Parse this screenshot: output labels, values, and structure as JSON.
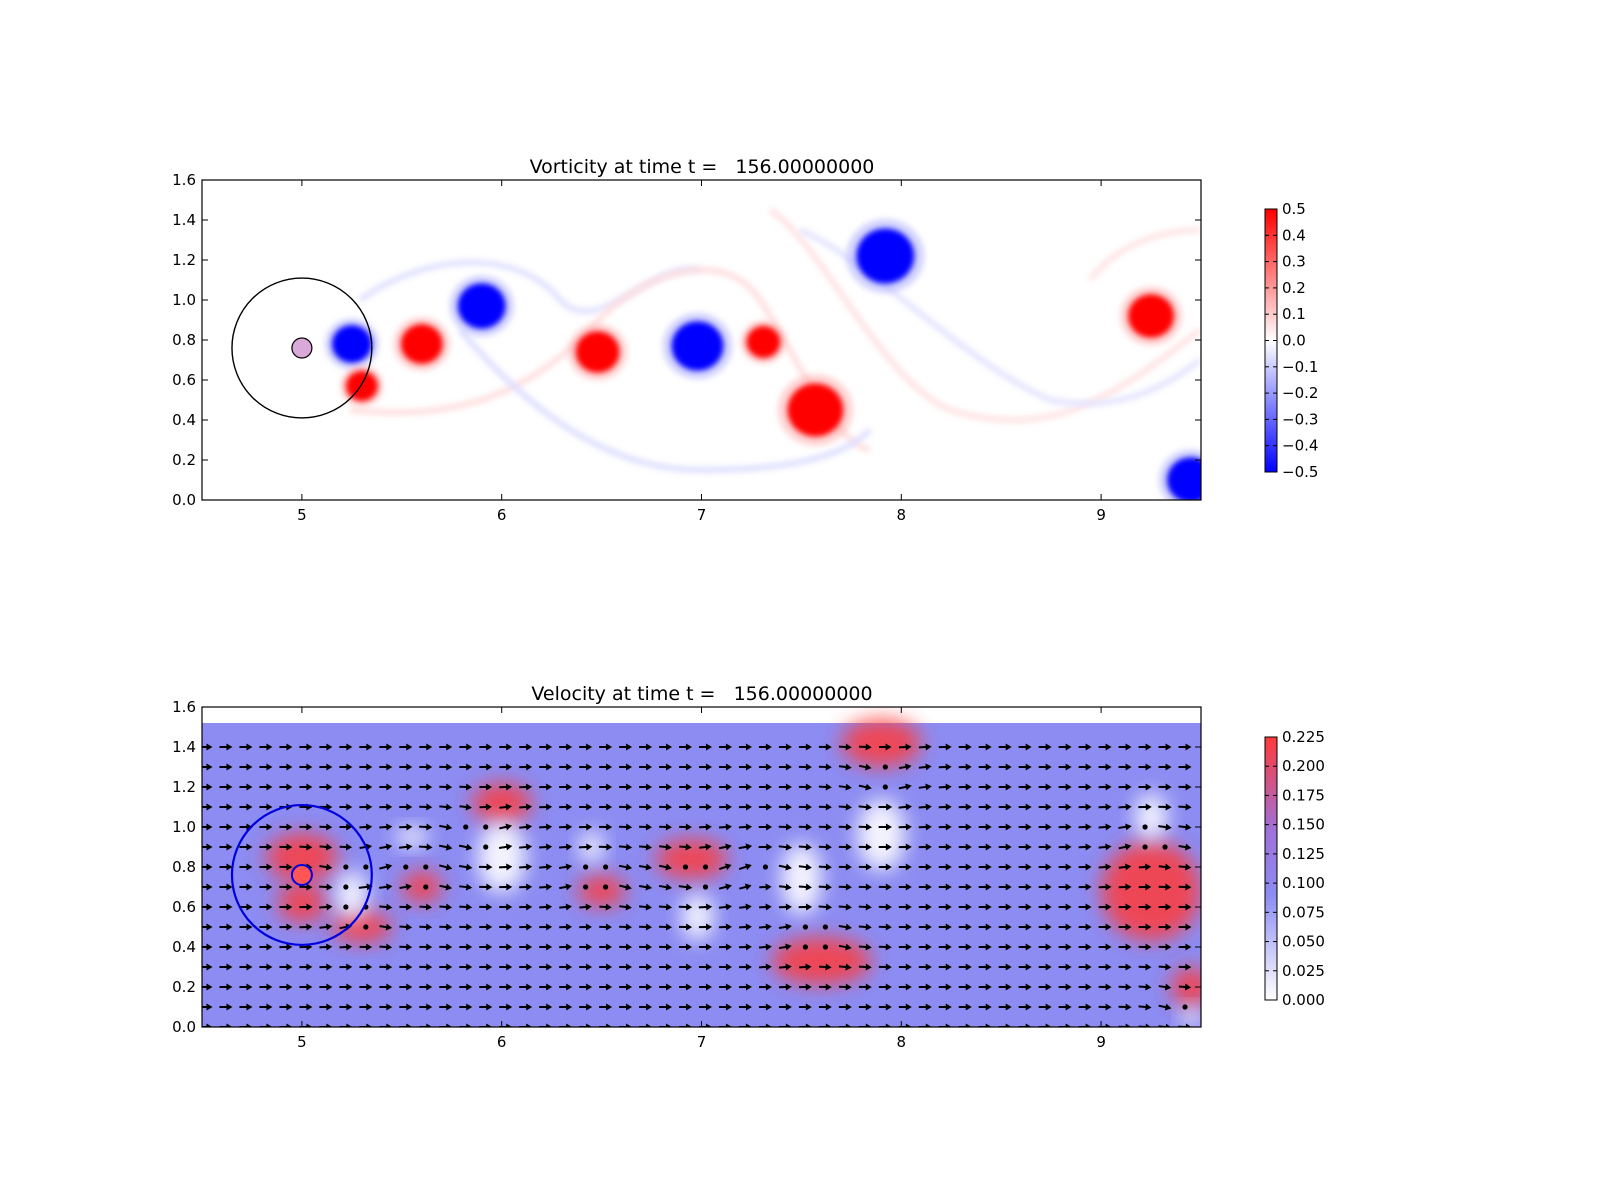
{
  "colors": {
    "vort_pos": "#ff0000",
    "vort_neg": "#0000ff",
    "vel_high": "#ff3a3a",
    "vel_mid": "#8c8cf2",
    "vel_low": "#ffffff",
    "arrow": "#000000"
  },
  "chart_data": [
    {
      "type": "heatmap",
      "title": "Vorticity at time t =   156.00000000",
      "xlabel": "",
      "ylabel": "",
      "xlim": [
        4.5,
        9.5
      ],
      "ylim": [
        0.0,
        1.6
      ],
      "xticks": [
        5,
        6,
        7,
        8,
        9
      ],
      "yticks": [
        0.0,
        0.2,
        0.4,
        0.6,
        0.8,
        1.0,
        1.2,
        1.4,
        1.6
      ],
      "grid": false,
      "colorbar": {
        "min": -0.5,
        "max": 0.5,
        "ticks": [
          0.5,
          0.4,
          0.3,
          0.2,
          0.1,
          0.0,
          -0.1,
          -0.2,
          -0.3,
          -0.4,
          -0.5
        ],
        "tick_labels": [
          "0.5",
          "0.4",
          "0.3",
          "0.2",
          "0.1",
          "0.0",
          "−0.1",
          "−0.2",
          "−0.3",
          "−0.4",
          "−0.5"
        ],
        "placement": "right"
      },
      "cylinder": {
        "x": 5.0,
        "y": 0.76,
        "r_inner": 0.05,
        "r_outer": 0.35
      },
      "vortices": [
        {
          "x": 5.25,
          "y": 0.78,
          "sign": -1
        },
        {
          "x": 5.3,
          "y": 0.57,
          "sign": 1
        },
        {
          "x": 5.6,
          "y": 0.78,
          "sign": 1
        },
        {
          "x": 5.9,
          "y": 0.97,
          "sign": -1
        },
        {
          "x": 6.48,
          "y": 0.74,
          "sign": 1
        },
        {
          "x": 6.98,
          "y": 0.77,
          "sign": -1
        },
        {
          "x": 7.31,
          "y": 0.79,
          "sign": 1
        },
        {
          "x": 7.57,
          "y": 0.45,
          "sign": 1
        },
        {
          "x": 7.92,
          "y": 1.22,
          "sign": -1
        },
        {
          "x": 9.25,
          "y": 0.92,
          "sign": 1
        },
        {
          "x": 9.45,
          "y": 0.1,
          "sign": -1
        }
      ]
    },
    {
      "type": "heatmap",
      "title": "Velocity at time t =   156.00000000",
      "xlabel": "",
      "ylabel": "",
      "xlim": [
        4.5,
        9.5
      ],
      "ylim": [
        0.0,
        1.6
      ],
      "xticks": [
        5,
        6,
        7,
        8,
        9
      ],
      "yticks": [
        0.0,
        0.2,
        0.4,
        0.6,
        0.8,
        1.0,
        1.2,
        1.4,
        1.6
      ],
      "grid": false,
      "field_top": 1.52,
      "colorbar": {
        "min": 0.0,
        "max": 0.225,
        "ticks": [
          0.225,
          0.2,
          0.175,
          0.15,
          0.125,
          0.1,
          0.075,
          0.05,
          0.025,
          0.0
        ],
        "tick_labels": [
          "0.225",
          "0.200",
          "0.175",
          "0.150",
          "0.125",
          "0.100",
          "0.075",
          "0.050",
          "0.025",
          "0.000"
        ],
        "placement": "right"
      },
      "cylinder": {
        "x": 5.0,
        "y": 0.76,
        "r_inner": 0.05,
        "r_outer": 0.35
      },
      "quiver": "velocity arrows"
    }
  ]
}
